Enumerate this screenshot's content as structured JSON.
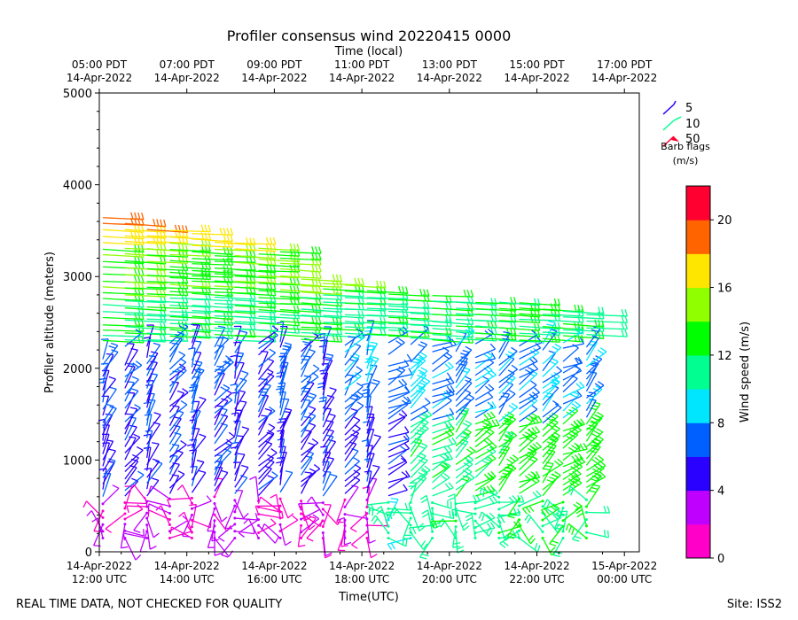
{
  "chart_data": {
    "type": "barbs",
    "title": "Profiler consensus wind 20220415 0000",
    "top_axis_label": "Time (local)",
    "xlabel": "Time(UTC)",
    "ylabel": "Profiler altitude (meters)",
    "ylim": [
      0,
      5000
    ],
    "y_ticks": [
      "0",
      "1000",
      "2000",
      "3000",
      "4000",
      "5000"
    ],
    "x_ticks_utc": [
      {
        "line1": "14-Apr-2022",
        "line2": "12:00 UTC"
      },
      {
        "line1": "14-Apr-2022",
        "line2": "14:00 UTC"
      },
      {
        "line1": "14-Apr-2022",
        "line2": "16:00 UTC"
      },
      {
        "line1": "14-Apr-2022",
        "line2": "18:00 UTC"
      },
      {
        "line1": "14-Apr-2022",
        "line2": "20:00 UTC"
      },
      {
        "line1": "14-Apr-2022",
        "line2": "22:00 UTC"
      },
      {
        "line1": "15-Apr-2022",
        "line2": "00:00 UTC"
      }
    ],
    "x_ticks_local": [
      {
        "line1": "05:00 PDT",
        "line2": "14-Apr-2022"
      },
      {
        "line1": "07:00 PDT",
        "line2": "14-Apr-2022"
      },
      {
        "line1": "09:00 PDT",
        "line2": "14-Apr-2022"
      },
      {
        "line1": "11:00 PDT",
        "line2": "14-Apr-2022"
      },
      {
        "line1": "13:00 PDT",
        "line2": "14-Apr-2022"
      },
      {
        "line1": "15:00 PDT",
        "line2": "14-Apr-2022"
      },
      {
        "line1": "17:00 PDT",
        "line2": "14-Apr-2022"
      }
    ],
    "barb_legend": {
      "entries": [
        "5",
        "10",
        "50"
      ],
      "title_line1": "Barb flags",
      "title_line2": "(m/s)"
    },
    "colorbar": {
      "label": "Wind speed (m/s)",
      "range": [
        0,
        22
      ],
      "ticks": [
        "0",
        "4",
        "8",
        "12",
        "16",
        "20"
      ],
      "colors": [
        "#ff00c8",
        "#c000ff",
        "#2a00ff",
        "#0060ff",
        "#00e6ff",
        "#00ff90",
        "#00ff00",
        "#90ff00",
        "#ffe600",
        "#ff6400",
        "#ff0030"
      ]
    }
  },
  "footer": {
    "left": "REAL TIME DATA, NOT CHECKED FOR QUALITY",
    "right": "Site: ISS2"
  }
}
